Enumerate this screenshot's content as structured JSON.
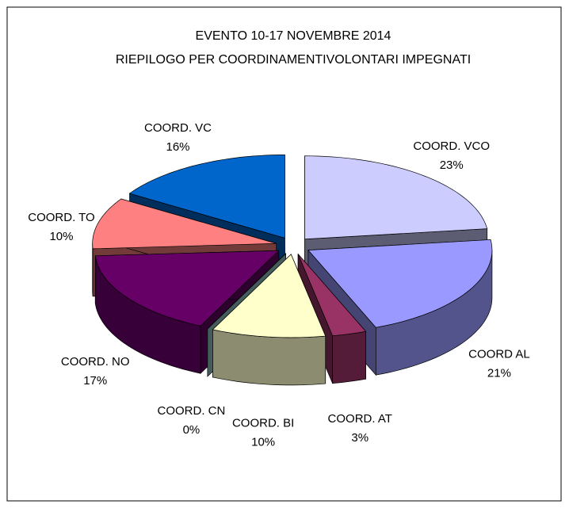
{
  "chart_data": {
    "type": "pie3d",
    "title": "EVENTO 10-17 NOVEMBRE 2014",
    "subtitle": "RIEPILOGO PER COORDINAMENTIVOLONTARI IMPEGNATI",
    "categories": [
      "COORD. VCO",
      "COORD AL",
      "COORD. AT",
      "COORD. BI",
      "COORD. CN",
      "COORD.  NO",
      "COORD. TO",
      "COORD. VC"
    ],
    "values": [
      23,
      21,
      3,
      10,
      0,
      17,
      10,
      16
    ],
    "value_labels": [
      "23%",
      "21%",
      "3%",
      "10%",
      "0%",
      "17%",
      "10%",
      "16%"
    ],
    "colors": [
      "#ccccff",
      "#9999ff",
      "#993366",
      "#ffffcc",
      "#99cccc",
      "#660066",
      "#ff8080",
      "#0066cc"
    ],
    "exploded": true
  }
}
